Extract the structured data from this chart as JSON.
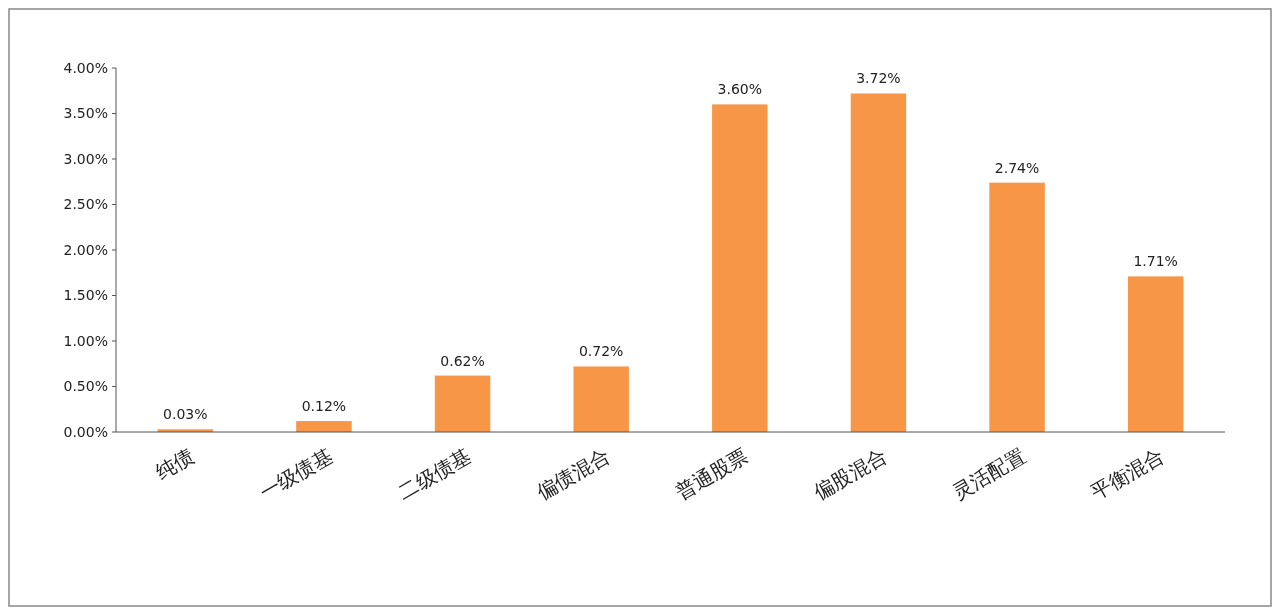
{
  "chart_data": {
    "type": "bar",
    "categories": [
      "纯债",
      "一级债基",
      "二级债基",
      "偏债混合",
      "普通股票",
      "偏股混合",
      "灵活配置",
      "平衡混合"
    ],
    "values": [
      0.03,
      0.12,
      0.62,
      0.72,
      3.6,
      3.72,
      2.74,
      1.71
    ],
    "value_labels": [
      "0.03%",
      "0.12%",
      "0.62%",
      "0.72%",
      "3.60%",
      "3.72%",
      "2.74%",
      "1.71%"
    ],
    "color": "#f79646",
    "ylim": [
      0,
      4
    ],
    "yticks": [
      {
        "value": 0,
        "label": "0.00%"
      },
      {
        "value": 0.5,
        "label": "0.50%"
      },
      {
        "value": 1,
        "label": "1.00%"
      },
      {
        "value": 1.5,
        "label": "1.50%"
      },
      {
        "value": 2,
        "label": "2.00%"
      },
      {
        "value": 2.5,
        "label": "2.50%"
      },
      {
        "value": 3,
        "label": "3.00%"
      },
      {
        "value": 3.5,
        "label": "3.50%"
      },
      {
        "value": 4,
        "label": "4.00%"
      }
    ],
    "grid": false
  }
}
